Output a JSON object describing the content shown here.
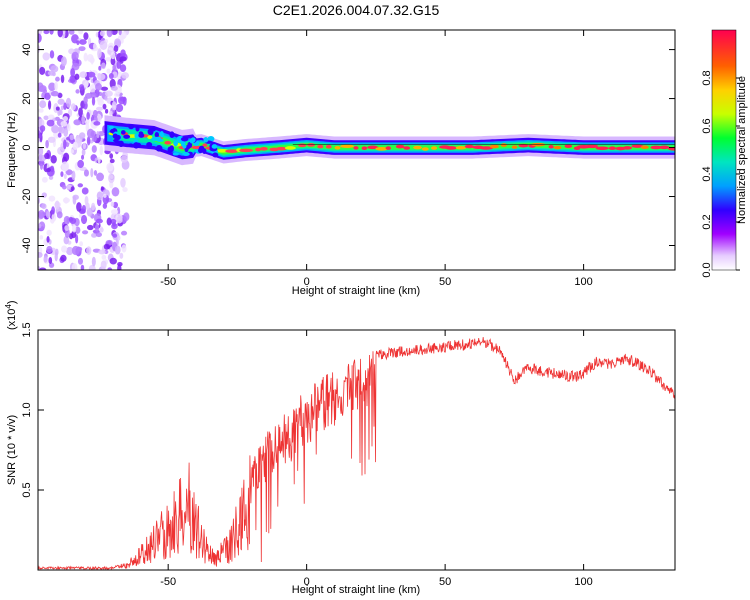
{
  "title": "C2E1.2026.004.07.32.G15",
  "chart_data": [
    {
      "type": "heatmap",
      "xlabel": "Height of straight line (km)",
      "ylabel": "Frequency (Hz)",
      "xlim": [
        -97,
        133
      ],
      "ylim": [
        -50,
        48
      ],
      "xticks": [
        -50,
        0,
        50,
        100
      ],
      "yticks": [
        -40,
        -20,
        0,
        20,
        40
      ],
      "colorbar": {
        "label": "Normalized spectral amplitude",
        "range": [
          0,
          1
        ],
        "ticks": [
          "0.0",
          "0.2",
          "0.4",
          "0.6",
          "0.8"
        ]
      },
      "ridge": [
        {
          "x": -73,
          "f": 6
        },
        {
          "x": -65,
          "f": 5
        },
        {
          "x": -55,
          "f": 4
        },
        {
          "x": -45,
          "f": 0
        },
        {
          "x": -38,
          "f": 1
        },
        {
          "x": -30,
          "f": -2
        },
        {
          "x": -22,
          "f": -1
        },
        {
          "x": -10,
          "f": 0
        },
        {
          "x": 0,
          "f": 1
        },
        {
          "x": 10,
          "f": 0
        },
        {
          "x": 20,
          "f": 0
        },
        {
          "x": 40,
          "f": 0
        },
        {
          "x": 60,
          "f": 0
        },
        {
          "x": 80,
          "f": 1
        },
        {
          "x": 100,
          "f": 0
        },
        {
          "x": 120,
          "f": 0
        },
        {
          "x": 133,
          "f": 0
        }
      ]
    },
    {
      "type": "line",
      "xlabel": "Height of straight line (km)",
      "ylabel": "SNR (10 * v/v)",
      "yscale_label": "(x10",
      "yscale_exp": "4",
      "yscale_close": ")",
      "xlim": [
        -97,
        133
      ],
      "ylim": [
        0,
        1.5
      ],
      "xticks": [
        -50,
        0,
        50,
        100
      ],
      "yticks": [
        "0.5",
        "1.0",
        "1.5"
      ],
      "series_color": "#ee3333",
      "envelope": [
        {
          "x": -97,
          "y": 0.02
        },
        {
          "x": -70,
          "y": 0.02
        },
        {
          "x": -65,
          "y": 0.05
        },
        {
          "x": -60,
          "y": 0.15
        },
        {
          "x": -55,
          "y": 0.3
        },
        {
          "x": -50,
          "y": 0.45
        },
        {
          "x": -45,
          "y": 0.6
        },
        {
          "x": -42,
          "y": 0.7
        },
        {
          "x": -38,
          "y": 0.3
        },
        {
          "x": -33,
          "y": 0.12
        },
        {
          "x": -28,
          "y": 0.25
        },
        {
          "x": -24,
          "y": 0.5
        },
        {
          "x": -20,
          "y": 0.78
        },
        {
          "x": -14,
          "y": 0.88
        },
        {
          "x": -8,
          "y": 0.98
        },
        {
          "x": -2,
          "y": 1.1
        },
        {
          "x": 5,
          "y": 1.2
        },
        {
          "x": 15,
          "y": 1.3
        },
        {
          "x": 25,
          "y": 1.38
        },
        {
          "x": 35,
          "y": 1.4
        },
        {
          "x": 45,
          "y": 1.42
        },
        {
          "x": 55,
          "y": 1.44
        },
        {
          "x": 65,
          "y": 1.46
        },
        {
          "x": 70,
          "y": 1.4
        },
        {
          "x": 75,
          "y": 1.22
        },
        {
          "x": 80,
          "y": 1.3
        },
        {
          "x": 90,
          "y": 1.26
        },
        {
          "x": 98,
          "y": 1.24
        },
        {
          "x": 105,
          "y": 1.34
        },
        {
          "x": 110,
          "y": 1.32
        },
        {
          "x": 115,
          "y": 1.36
        },
        {
          "x": 120,
          "y": 1.32
        },
        {
          "x": 125,
          "y": 1.26
        },
        {
          "x": 133,
          "y": 1.12
        }
      ]
    }
  ]
}
